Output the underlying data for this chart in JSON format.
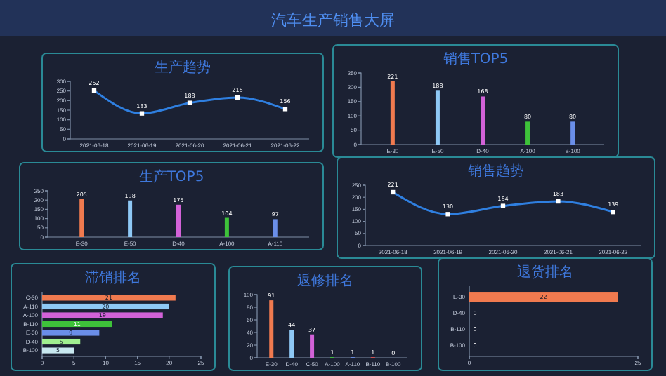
{
  "chart_data": [
    {
      "type": "line",
      "title": "生产趋势",
      "annotations": [
        "汽车生产销售大屏"
      ],
      "categories": [
        "2021-06-18",
        "2021-06-19",
        "2021-06-20",
        "2021-06-21",
        "2021-06-22"
      ],
      "series": [
        {
          "color": "#2f7fe0",
          "values": [
            252,
            133,
            188,
            216,
            156
          ]
        }
      ],
      "ylim": [
        0,
        300
      ],
      "yticks": [
        0,
        50,
        100,
        150,
        200,
        250,
        300
      ],
      "marker": "square",
      "data_labels": true
    },
    {
      "type": "bar",
      "title": "销售TOP5",
      "categories": [
        "E-30",
        "E-50",
        "D-40",
        "A-100",
        "B-100"
      ],
      "values": [
        221,
        188,
        168,
        80,
        80
      ],
      "colors": [
        "#f07a4f",
        "#8ec8f5",
        "#d262d8",
        "#3ec23a",
        "#6a8ee8"
      ],
      "ylim": [
        0,
        250
      ],
      "yticks": [
        0,
        50,
        100,
        150,
        200,
        250
      ],
      "data_labels": true
    },
    {
      "type": "bar",
      "title": "生产TOP5",
      "categories": [
        "E-30",
        "E-50",
        "D-40",
        "A-100",
        "A-110"
      ],
      "values": [
        205,
        198,
        175,
        104,
        97
      ],
      "colors": [
        "#f07a4f",
        "#8ec8f5",
        "#d262d8",
        "#3ec23a",
        "#6a8ee8"
      ],
      "ylim": [
        0,
        250
      ],
      "yticks": [
        0,
        50,
        100,
        150,
        200,
        250
      ],
      "data_labels": true
    },
    {
      "type": "line",
      "title": "销售趋势",
      "categories": [
        "2021-06-18",
        "2021-06-19",
        "2021-06-20",
        "2021-06-21",
        "2021-06-22"
      ],
      "series": [
        {
          "color": "#2f7fe0",
          "values": [
            221,
            130,
            164,
            183,
            139
          ]
        }
      ],
      "ylim": [
        0,
        250
      ],
      "yticks": [
        0,
        50,
        100,
        150,
        200,
        250
      ],
      "marker": "square",
      "data_labels": true
    },
    {
      "type": "bar",
      "orientation": "horizontal",
      "title": "滞销排名",
      "categories": [
        "C-30",
        "A-110",
        "A-100",
        "B-110",
        "E-30",
        "D-40",
        "B-100"
      ],
      "values": [
        21,
        20,
        19,
        11,
        9,
        6,
        5
      ],
      "colors": [
        "#f07a4f",
        "#8ec8f5",
        "#d262d8",
        "#3ec23a",
        "#6a8ee8",
        "#a0f090",
        "#c8e8f0"
      ],
      "xlim": [
        0,
        25
      ],
      "xticks": [
        0,
        5,
        10,
        15,
        20,
        25
      ],
      "data_labels": true
    },
    {
      "type": "bar",
      "title": "返修排名",
      "categories": [
        "E-30",
        "D-40",
        "C-50",
        "A-100",
        "A-110",
        "B-110",
        "B-100"
      ],
      "values": [
        91,
        44,
        37,
        1,
        1,
        1,
        0
      ],
      "colors": [
        "#f07a4f",
        "#8ec8f5",
        "#d262d8",
        "#3ec23a",
        "#6a8ee8",
        "#e05050",
        "#e05050"
      ],
      "ylim": [
        0,
        100
      ],
      "yticks": [
        0,
        20,
        40,
        60,
        80,
        100
      ],
      "data_labels": true
    },
    {
      "type": "bar",
      "orientation": "horizontal",
      "title": "退货排名",
      "categories": [
        "E-30",
        "D-40",
        "B-110",
        "B-100"
      ],
      "values": [
        22,
        0,
        0,
        0
      ],
      "colors": [
        "#f07a4f",
        "#8ec8f5",
        "#3ec23a",
        "#6a8ee8"
      ],
      "xlim": [
        0,
        25
      ],
      "xticks": [
        0,
        25
      ],
      "data_labels": true
    }
  ]
}
